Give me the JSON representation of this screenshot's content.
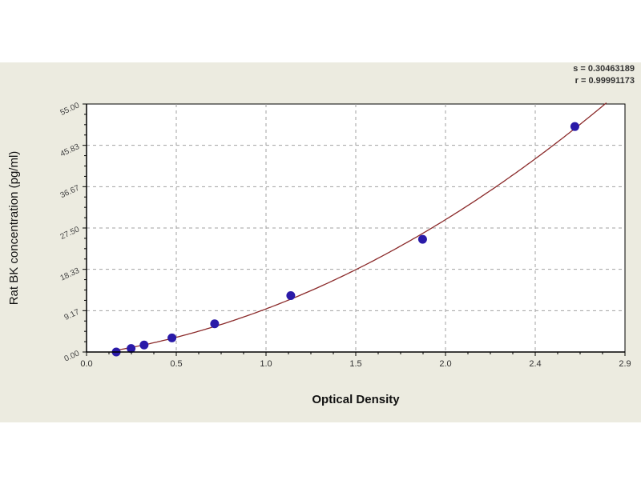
{
  "chart_data": {
    "type": "scatter",
    "title": "",
    "xlabel": "Optical Density",
    "ylabel": "Rat BK concentration (pg/ml)",
    "xlim": [
      0,
      2.9
    ],
    "ylim": [
      0,
      55
    ],
    "x_tick_labels": [
      "0.0",
      "0.5",
      "1.0",
      "1.5",
      "2.0",
      "2.4",
      "2.9"
    ],
    "y_tick_labels": [
      "0.00",
      "9.17",
      "18.33",
      "27.50",
      "36.67",
      "45.83",
      "55.00"
    ],
    "grid": true,
    "points": {
      "x": [
        0.16,
        0.24,
        0.31,
        0.46,
        0.69,
        1.1,
        1.81,
        2.63
      ],
      "y": [
        0,
        0.78,
        1.56,
        3.125,
        6.25,
        12.5,
        25,
        50
      ]
    },
    "fit_curve": true,
    "annotations": [
      "s = 0.30463189",
      "r = 0.99991173"
    ],
    "colors": {
      "background": "#ecebe0",
      "plot_area": "#ffffff",
      "grid": "#a0a0a0",
      "curve": "#8b2a2a",
      "points": "#2a1aa8"
    }
  }
}
